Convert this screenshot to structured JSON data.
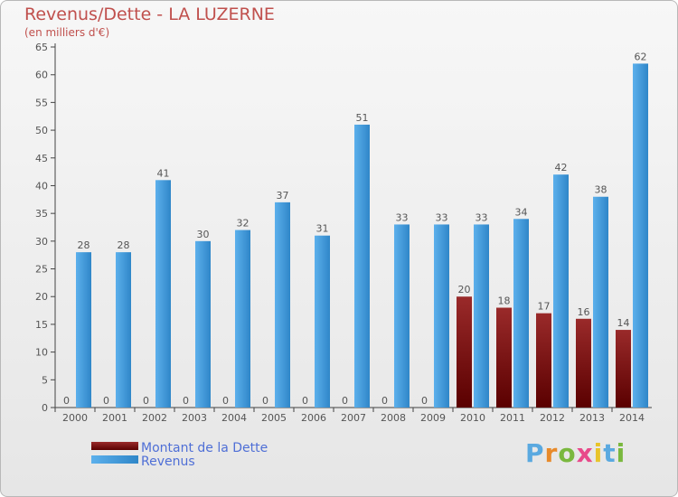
{
  "chart_data": {
    "type": "bar",
    "title": "Revenus/Dette - LA LUZERNE",
    "subtitle": "(en milliers d'€)",
    "categories": [
      "2000",
      "2001",
      "2002",
      "2003",
      "2004",
      "2005",
      "2006",
      "2007",
      "2008",
      "2009",
      "2010",
      "2011",
      "2012",
      "2013",
      "2014"
    ],
    "series": [
      {
        "name": "Montant de la Dette",
        "color": "#7a0a0a",
        "values": [
          0,
          0,
          0,
          0,
          0,
          0,
          0,
          0,
          0,
          0,
          20,
          18,
          17,
          16,
          14
        ]
      },
      {
        "name": "Revenus",
        "color": "#4da3e3",
        "values": [
          28,
          28,
          41,
          30,
          32,
          37,
          31,
          51,
          33,
          33,
          33,
          34,
          42,
          38,
          62
        ]
      }
    ],
    "ylim": [
      0,
      65
    ],
    "yticks": [
      0,
      5,
      10,
      15,
      20,
      25,
      30,
      35,
      40,
      45,
      50,
      55,
      60,
      65
    ],
    "grid": false,
    "legend": "bottom-left"
  },
  "logo": {
    "text": "Proxiti",
    "colors": [
      "#5aa9e0",
      "#e88a2a",
      "#7ab83e",
      "#e84a8a",
      "#e8c42a",
      "#5aa9e0",
      "#7ab83e"
    ]
  }
}
